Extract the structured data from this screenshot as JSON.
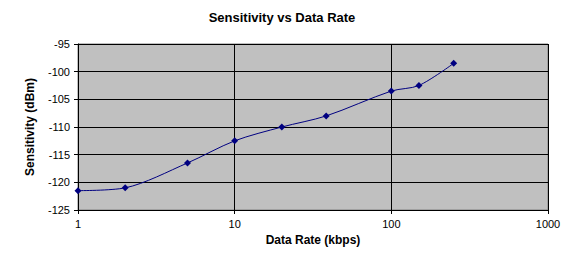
{
  "chart_data": {
    "type": "line",
    "title": "Sensitivity vs Data Rate",
    "x_label": "Data Rate (kbps)",
    "y_label": "Sensitivity (dBm)",
    "x": [
      1,
      2,
      5,
      10,
      20,
      38.4,
      100,
      150,
      250
    ],
    "values": [
      -121.5,
      -121,
      -116.5,
      -112.5,
      -110,
      -108,
      -103.5,
      -102.5,
      -98.5
    ],
    "color": "#000080",
    "marker": "diamond",
    "log": "x",
    "xlim": [
      1,
      1000
    ],
    "xticks": [
      1,
      10,
      100,
      1000
    ],
    "ylim": [
      -125,
      -95
    ],
    "yticks": [
      -125,
      -120,
      -115,
      -110,
      -105,
      -100,
      -95
    ],
    "grid": true
  }
}
